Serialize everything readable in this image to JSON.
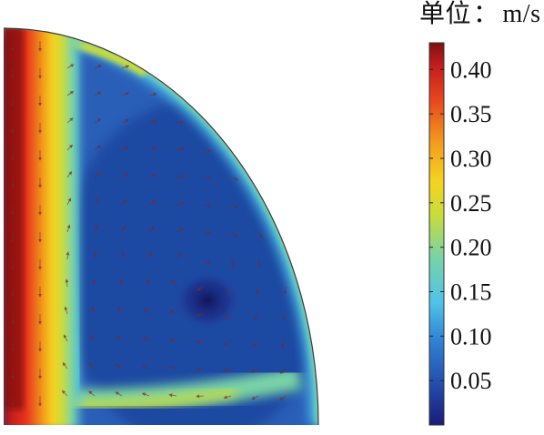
{
  "chart_data": {
    "type": "heatmap",
    "colorbar": {
      "unit_prefix": "单位",
      "unit_separator": "：",
      "unit": "m/s",
      "min": 0,
      "max": 0.43,
      "ticks": [
        0.05,
        0.1,
        0.15,
        0.2,
        0.25,
        0.3,
        0.35,
        0.4
      ],
      "tick_labels": [
        "0.05",
        "0.10",
        "0.15",
        "0.20",
        "0.25",
        "0.30",
        "0.35",
        "0.40"
      ],
      "colormap": [
        "#1a1b7a",
        "#234aa8",
        "#2f82d4",
        "#4fc3e8",
        "#79d3a6",
        "#c9dc3a",
        "#f6d220",
        "#f39b1e",
        "#e8461f",
        "#c41d1d",
        "#7d1111"
      ]
    },
    "field": {
      "domain_shape": "quarter-circle",
      "max_velocity": 0.43,
      "min_velocity": 0.0
    }
  }
}
